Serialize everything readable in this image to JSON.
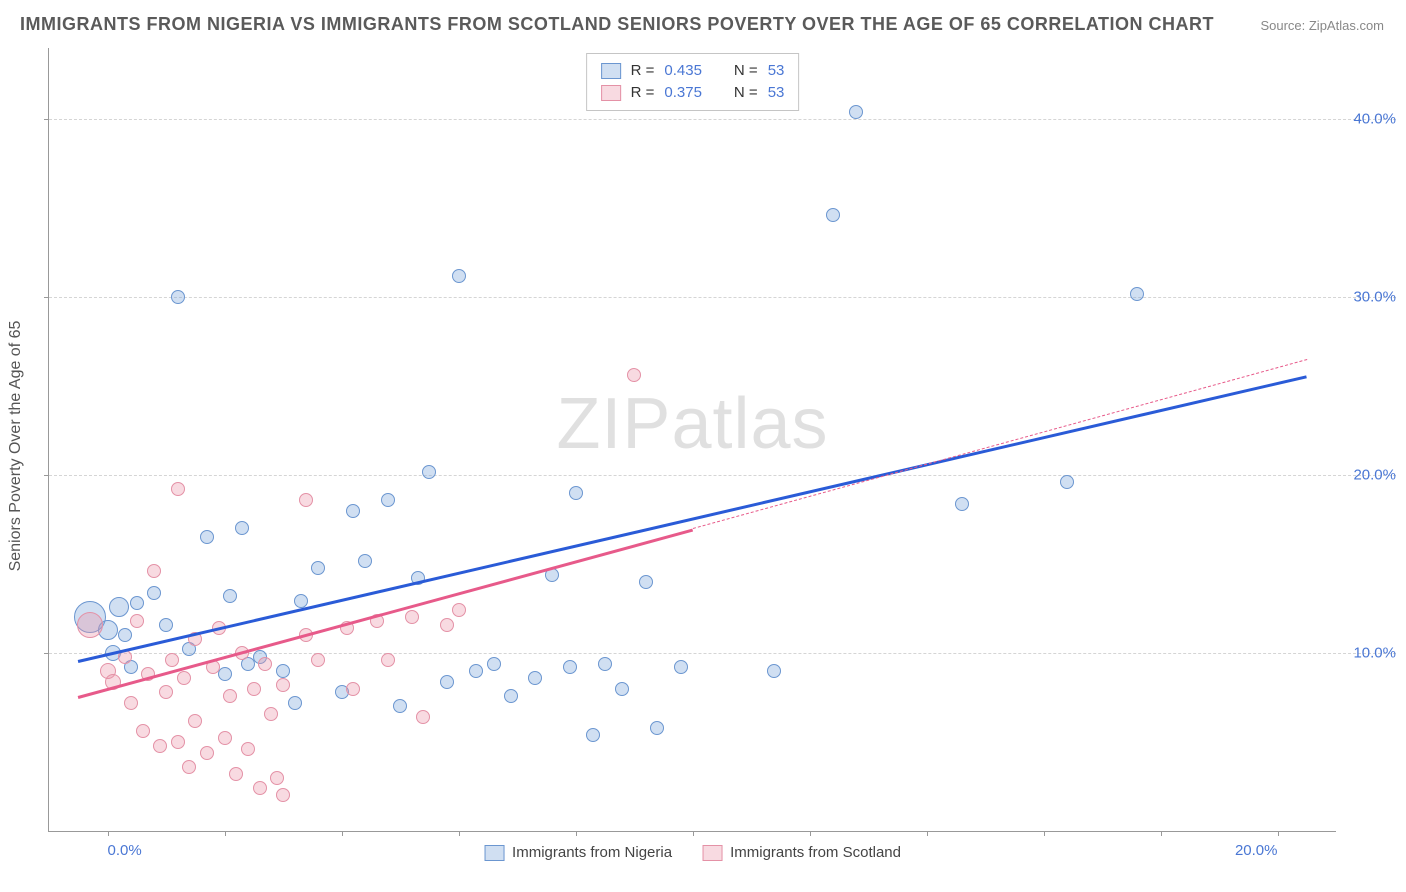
{
  "title": "IMMIGRANTS FROM NIGERIA VS IMMIGRANTS FROM SCOTLAND SENIORS POVERTY OVER THE AGE OF 65 CORRELATION CHART",
  "source_label": "Source: ZipAtlas.com",
  "y_axis_label": "Seniors Poverty Over the Age of 65",
  "watermark": "ZIPatlas",
  "chart": {
    "type": "scatter",
    "background_color": "#ffffff",
    "grid_color": "#d5d5d5",
    "axis_color": "#999999",
    "x_range": [
      -1,
      21
    ],
    "y_range": [
      0,
      44
    ],
    "x_ticks": [
      {
        "v": 0,
        "label": "0.0%",
        "align": "left"
      },
      {
        "v": 20,
        "label": "20.0%",
        "align": "right"
      }
    ],
    "y_ticks": [
      {
        "v": 10,
        "label": "10.0%"
      },
      {
        "v": 20,
        "label": "20.0%"
      },
      {
        "v": 30,
        "label": "30.0%"
      },
      {
        "v": 40,
        "label": "40.0%"
      }
    ],
    "x_minor_step": 2,
    "series": [
      {
        "name": "Immigrants from Nigeria",
        "fill": "rgba(120,162,219,0.35)",
        "stroke": "#6b96d0",
        "trend_color": "#2a5bd7",
        "trend": {
          "x1": -0.5,
          "y1": 9.6,
          "x2": 20.5,
          "y2": 25.6
        },
        "dashed_trend": null,
        "r": 0.435,
        "n": 53,
        "points": [
          {
            "x": -0.3,
            "y": 12.0,
            "r": 16
          },
          {
            "x": 0.0,
            "y": 11.3,
            "r": 10
          },
          {
            "x": 0.2,
            "y": 12.6,
            "r": 10
          },
          {
            "x": 0.1,
            "y": 10.0,
            "r": 8
          },
          {
            "x": 0.3,
            "y": 11.0,
            "r": 7
          },
          {
            "x": 0.5,
            "y": 12.8,
            "r": 7
          },
          {
            "x": 0.4,
            "y": 9.2,
            "r": 7
          },
          {
            "x": 0.8,
            "y": 13.4,
            "r": 7
          },
          {
            "x": 1.0,
            "y": 11.6,
            "r": 7
          },
          {
            "x": 1.2,
            "y": 30.0,
            "r": 7
          },
          {
            "x": 1.4,
            "y": 10.2,
            "r": 7
          },
          {
            "x": 1.7,
            "y": 16.5,
            "r": 7
          },
          {
            "x": 2.0,
            "y": 8.8,
            "r": 7
          },
          {
            "x": 2.1,
            "y": 13.2,
            "r": 7
          },
          {
            "x": 2.4,
            "y": 9.4,
            "r": 7
          },
          {
            "x": 2.3,
            "y": 17.0,
            "r": 7
          },
          {
            "x": 2.6,
            "y": 9.8,
            "r": 7
          },
          {
            "x": 3.0,
            "y": 9.0,
            "r": 7
          },
          {
            "x": 3.2,
            "y": 7.2,
            "r": 7
          },
          {
            "x": 3.3,
            "y": 12.9,
            "r": 7
          },
          {
            "x": 3.6,
            "y": 14.8,
            "r": 7
          },
          {
            "x": 4.0,
            "y": 7.8,
            "r": 7
          },
          {
            "x": 4.2,
            "y": 18.0,
            "r": 7
          },
          {
            "x": 4.4,
            "y": 15.2,
            "r": 7
          },
          {
            "x": 4.8,
            "y": 18.6,
            "r": 7
          },
          {
            "x": 5.0,
            "y": 7.0,
            "r": 7
          },
          {
            "x": 5.3,
            "y": 14.2,
            "r": 7
          },
          {
            "x": 5.5,
            "y": 20.2,
            "r": 7
          },
          {
            "x": 5.8,
            "y": 8.4,
            "r": 7
          },
          {
            "x": 6.0,
            "y": 31.2,
            "r": 7
          },
          {
            "x": 6.3,
            "y": 9.0,
            "r": 7
          },
          {
            "x": 6.6,
            "y": 9.4,
            "r": 7
          },
          {
            "x": 6.9,
            "y": 7.6,
            "r": 7
          },
          {
            "x": 7.3,
            "y": 8.6,
            "r": 7
          },
          {
            "x": 7.6,
            "y": 14.4,
            "r": 7
          },
          {
            "x": 7.9,
            "y": 9.2,
            "r": 7
          },
          {
            "x": 8.0,
            "y": 19.0,
            "r": 7
          },
          {
            "x": 8.3,
            "y": 5.4,
            "r": 7
          },
          {
            "x": 8.5,
            "y": 9.4,
            "r": 7
          },
          {
            "x": 8.8,
            "y": 8.0,
            "r": 7
          },
          {
            "x": 9.2,
            "y": 14.0,
            "r": 7
          },
          {
            "x": 9.4,
            "y": 5.8,
            "r": 7
          },
          {
            "x": 9.8,
            "y": 9.2,
            "r": 7
          },
          {
            "x": 11.4,
            "y": 9.0,
            "r": 7
          },
          {
            "x": 12.4,
            "y": 34.6,
            "r": 7
          },
          {
            "x": 12.8,
            "y": 40.4,
            "r": 7
          },
          {
            "x": 14.6,
            "y": 18.4,
            "r": 7
          },
          {
            "x": 16.4,
            "y": 19.6,
            "r": 7
          },
          {
            "x": 17.6,
            "y": 30.2,
            "r": 7
          }
        ]
      },
      {
        "name": "Immigrants from Scotland",
        "fill": "rgba(235,150,170,0.35)",
        "stroke": "#e491a6",
        "trend_color": "#e75a8a",
        "trend": {
          "x1": -0.5,
          "y1": 7.6,
          "x2": 10.0,
          "y2": 17.0
        },
        "dashed_trend": {
          "x1": 10.0,
          "y1": 17.0,
          "x2": 20.5,
          "y2": 26.5
        },
        "r": 0.375,
        "n": 53,
        "points": [
          {
            "x": -0.3,
            "y": 11.6,
            "r": 13
          },
          {
            "x": 0.0,
            "y": 9.0,
            "r": 8
          },
          {
            "x": 0.1,
            "y": 8.4,
            "r": 8
          },
          {
            "x": 0.3,
            "y": 9.8,
            "r": 7
          },
          {
            "x": 0.4,
            "y": 7.2,
            "r": 7
          },
          {
            "x": 0.5,
            "y": 11.8,
            "r": 7
          },
          {
            "x": 0.6,
            "y": 5.6,
            "r": 7
          },
          {
            "x": 0.7,
            "y": 8.8,
            "r": 7
          },
          {
            "x": 0.9,
            "y": 4.8,
            "r": 7
          },
          {
            "x": 0.8,
            "y": 14.6,
            "r": 7
          },
          {
            "x": 1.0,
            "y": 7.8,
            "r": 7
          },
          {
            "x": 1.1,
            "y": 9.6,
            "r": 7
          },
          {
            "x": 1.2,
            "y": 5.0,
            "r": 7
          },
          {
            "x": 1.2,
            "y": 19.2,
            "r": 7
          },
          {
            "x": 1.3,
            "y": 8.6,
            "r": 7
          },
          {
            "x": 1.4,
            "y": 3.6,
            "r": 7
          },
          {
            "x": 1.5,
            "y": 10.8,
            "r": 7
          },
          {
            "x": 1.5,
            "y": 6.2,
            "r": 7
          },
          {
            "x": 1.7,
            "y": 4.4,
            "r": 7
          },
          {
            "x": 1.8,
            "y": 9.2,
            "r": 7
          },
          {
            "x": 1.9,
            "y": 11.4,
            "r": 7
          },
          {
            "x": 2.0,
            "y": 5.2,
            "r": 7
          },
          {
            "x": 2.1,
            "y": 7.6,
            "r": 7
          },
          {
            "x": 2.2,
            "y": 3.2,
            "r": 7
          },
          {
            "x": 2.3,
            "y": 10.0,
            "r": 7
          },
          {
            "x": 2.4,
            "y": 4.6,
            "r": 7
          },
          {
            "x": 2.5,
            "y": 8.0,
            "r": 7
          },
          {
            "x": 2.6,
            "y": 2.4,
            "r": 7
          },
          {
            "x": 2.7,
            "y": 9.4,
            "r": 7
          },
          {
            "x": 2.8,
            "y": 6.6,
            "r": 7
          },
          {
            "x": 2.9,
            "y": 3.0,
            "r": 7
          },
          {
            "x": 3.0,
            "y": 2.0,
            "r": 7
          },
          {
            "x": 3.0,
            "y": 8.2,
            "r": 7
          },
          {
            "x": 3.4,
            "y": 18.6,
            "r": 7
          },
          {
            "x": 3.4,
            "y": 11.0,
            "r": 7
          },
          {
            "x": 3.6,
            "y": 9.6,
            "r": 7
          },
          {
            "x": 4.1,
            "y": 11.4,
            "r": 7
          },
          {
            "x": 4.2,
            "y": 8.0,
            "r": 7
          },
          {
            "x": 4.6,
            "y": 11.8,
            "r": 7
          },
          {
            "x": 4.8,
            "y": 9.6,
            "r": 7
          },
          {
            "x": 5.2,
            "y": 12.0,
            "r": 7
          },
          {
            "x": 5.4,
            "y": 6.4,
            "r": 7
          },
          {
            "x": 5.8,
            "y": 11.6,
            "r": 7
          },
          {
            "x": 6.0,
            "y": 12.4,
            "r": 7
          },
          {
            "x": 9.0,
            "y": 25.6,
            "r": 7
          }
        ]
      }
    ]
  },
  "legend_top": {
    "rows": [
      {
        "sw_fill": "rgba(120,162,219,0.35)",
        "sw_stroke": "#6b96d0",
        "r_label": "R =",
        "r_val": "0.435",
        "n_label": "N =",
        "n_val": "53"
      },
      {
        "sw_fill": "rgba(235,150,170,0.35)",
        "sw_stroke": "#e491a6",
        "r_label": "R =",
        "r_val": "0.375",
        "n_label": "N =",
        "n_val": "53"
      }
    ]
  },
  "legend_bottom": {
    "items": [
      {
        "sw_fill": "rgba(120,162,219,0.35)",
        "sw_stroke": "#6b96d0",
        "label": "Immigrants from Nigeria"
      },
      {
        "sw_fill": "rgba(235,150,170,0.35)",
        "sw_stroke": "#e491a6",
        "label": "Immigrants from Scotland"
      }
    ]
  }
}
